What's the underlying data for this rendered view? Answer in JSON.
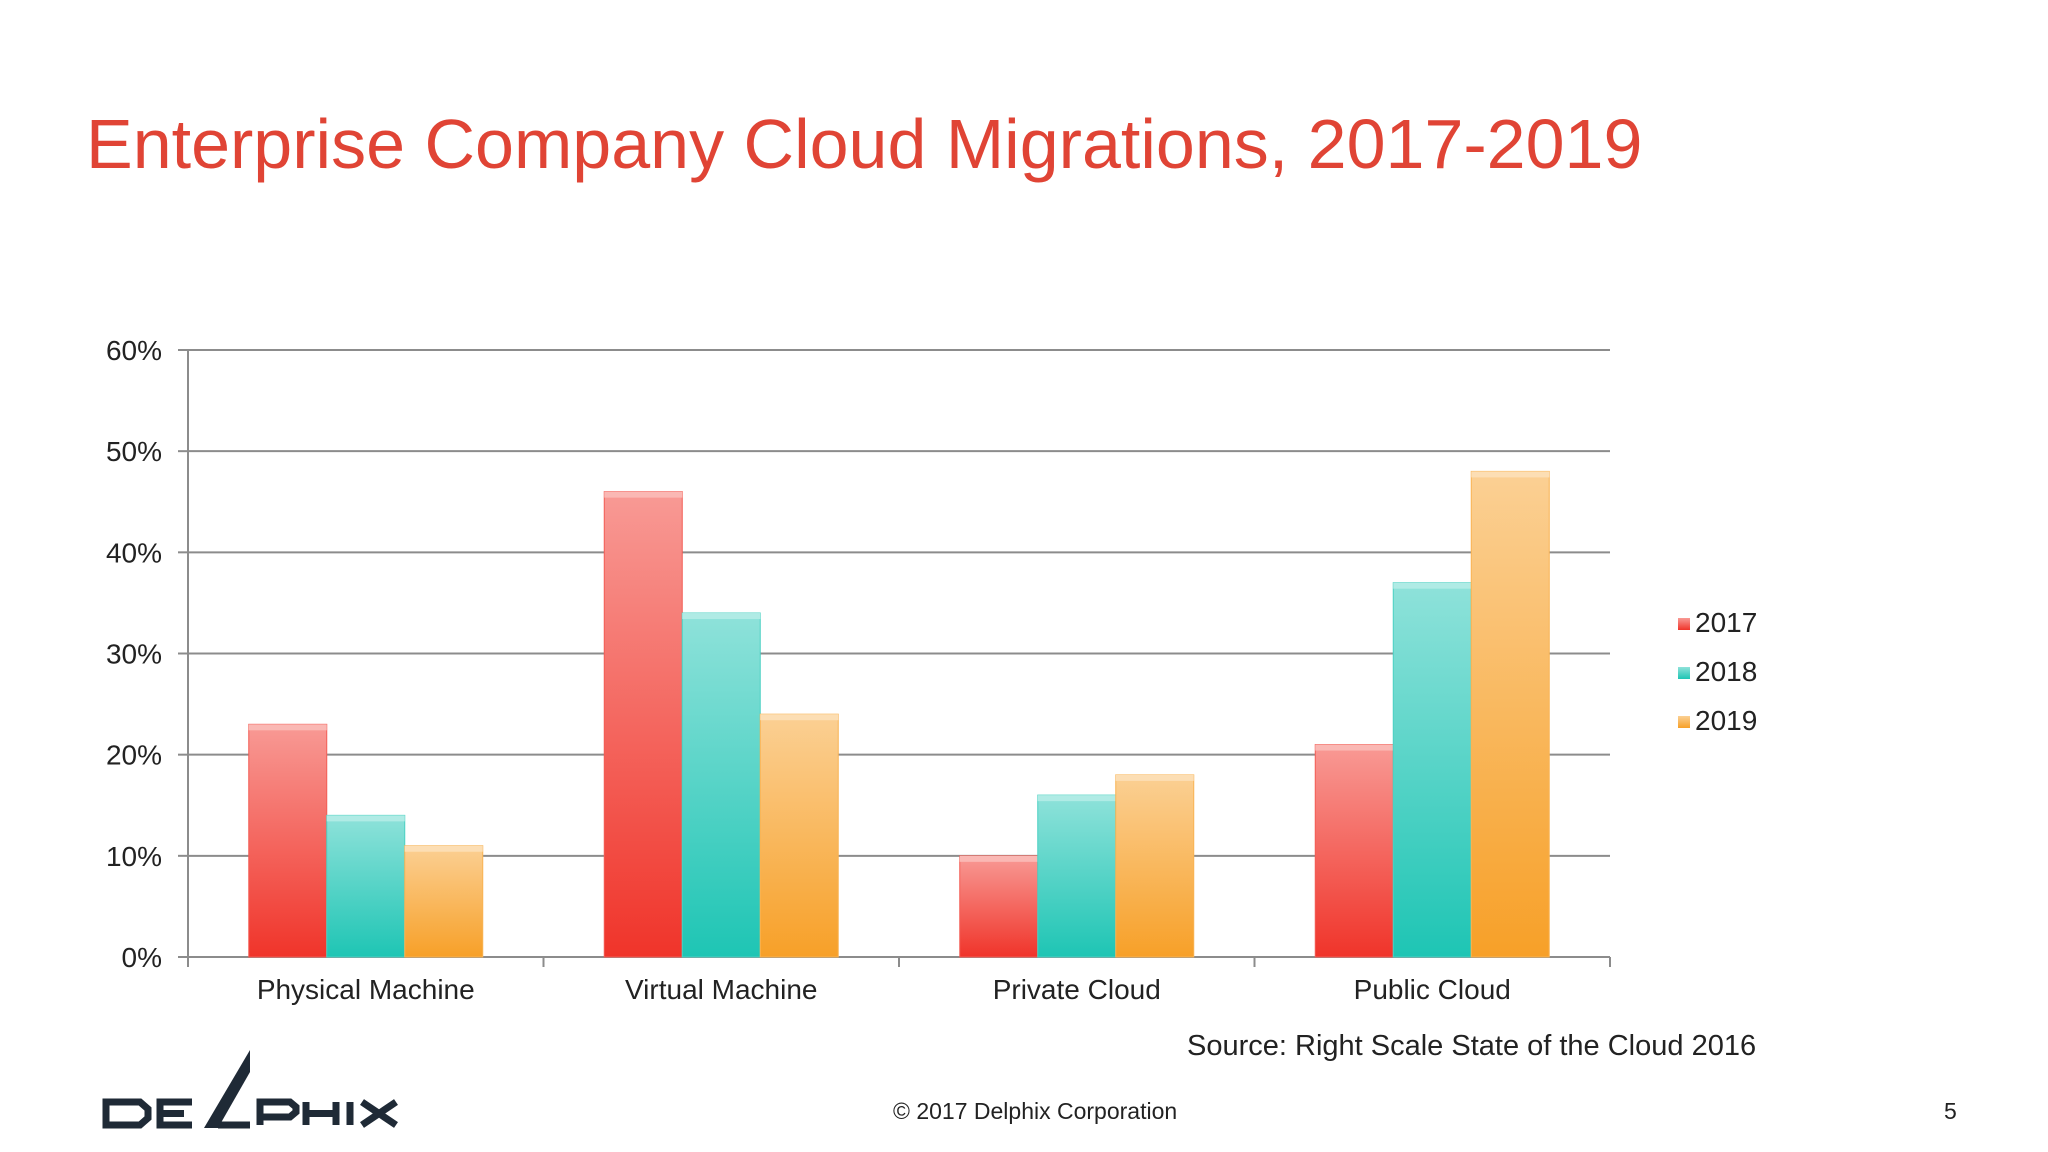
{
  "slide": {
    "title": "Enterprise Company Cloud Migrations, 2017-2019",
    "source": "Source: Right Scale State of the Cloud 2016",
    "copyright": "© 2017 Delphix Corporation",
    "page_number": "5",
    "logo": "DELPHIX"
  },
  "chart_data": {
    "type": "bar",
    "categories": [
      "Physical Machine",
      "Virtual Machine",
      "Private Cloud",
      "Public Cloud"
    ],
    "series": [
      {
        "name": "2017",
        "values": [
          23,
          46,
          10,
          21
        ],
        "color": "#f0342a"
      },
      {
        "name": "2018",
        "values": [
          14,
          34,
          16,
          37
        ],
        "color": "#1ec5b4"
      },
      {
        "name": "2019",
        "values": [
          11,
          24,
          18,
          48
        ],
        "color": "#f7a028"
      }
    ],
    "ylim": [
      0,
      60
    ],
    "yticks": [
      0,
      10,
      20,
      30,
      40,
      50,
      60
    ],
    "ytick_labels": [
      "0%",
      "10%",
      "20%",
      "30%",
      "40%",
      "50%",
      "60%"
    ],
    "grid": true,
    "legend": "right",
    "title": "",
    "xlabel": "",
    "ylabel": ""
  }
}
